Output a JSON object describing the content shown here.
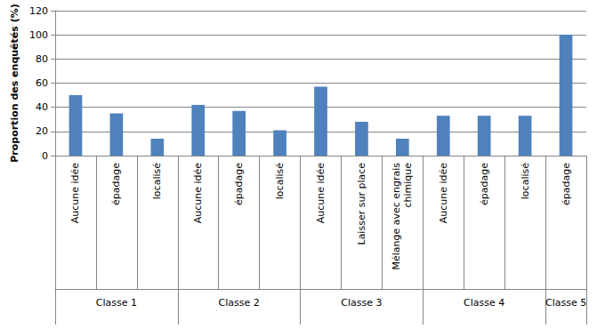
{
  "chart_data": {
    "type": "bar",
    "y_label": "Proportion des enquêtés (%)",
    "categories": [
      "Aucune idée",
      "épadage",
      "localisé",
      "Aucune idée",
      "épadage",
      "localisé",
      "Aucune idée",
      "Laisser sur place",
      "Mélange avec engrais chimique",
      "Aucune idée",
      "épadage",
      "localisé",
      "épadage"
    ],
    "groups": [
      "Classe 1",
      "Classe 1",
      "Classe 1",
      "Classe 2",
      "Classe 2",
      "Classe 2",
      "Classe 3",
      "Classe 3",
      "Classe 3",
      "Classe 4",
      "Classe 4",
      "Classe 4",
      "Classe 5"
    ],
    "values": [
      50,
      35,
      14,
      42,
      37,
      21,
      57,
      28,
      14,
      33,
      33,
      33,
      100
    ],
    "color": "#4F81BD",
    "ylim": [
      0,
      120
    ],
    "yticks": [
      0,
      20,
      40,
      60,
      80,
      100,
      120
    ],
    "grid": true
  }
}
